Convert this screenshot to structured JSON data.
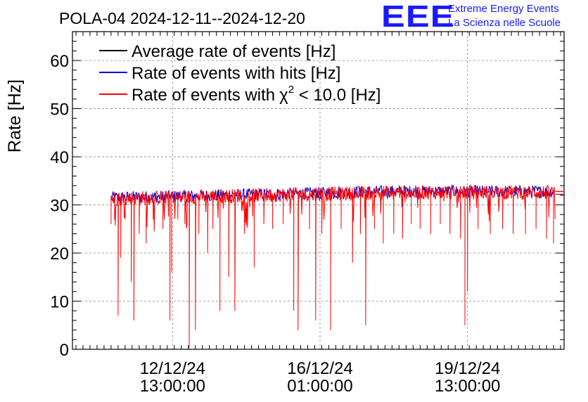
{
  "header": {
    "title": "POLA-04 2024-12-11--2024-12-20",
    "logo_text": "EEE",
    "logo_line1": "Extreme Energy Events",
    "logo_line2": "La Scienza nelle Scuole"
  },
  "colors": {
    "average": "#000000",
    "hits": "#0000cc",
    "chi2": "#ff0000",
    "logo": "#1a1aff",
    "grid": "#888888"
  },
  "chart_data": {
    "type": "line",
    "title": "POLA-04 2024-12-11--2024-12-20",
    "ylabel": "Rate [Hz]",
    "xlabel": "",
    "ylim": [
      0,
      66
    ],
    "y_ticks": [
      0,
      10,
      20,
      30,
      40,
      50,
      60
    ],
    "x_ticks": [
      {
        "date": "12/12/24",
        "time": "13:00:00",
        "hours_from_start": 37
      },
      {
        "date": "16/12/24",
        "time": "01:00:00",
        "hours_from_start": 121
      },
      {
        "date": "19/12/24",
        "time": "13:00:00",
        "hours_from_start": 205
      }
    ],
    "x_range_hours": [
      -20,
      260
    ],
    "data_x_range_hours": [
      2,
      255
    ],
    "legend_position": "top-left",
    "series": [
      {
        "name": "Average rate of events [Hz]",
        "key": "average",
        "value": 32.8
      },
      {
        "name": "Rate of events with hits [Hz]",
        "key": "hits",
        "baseline_start": 31.5,
        "baseline_end": 32.8
      },
      {
        "name": "Rate of events with",
        "key": "chi2",
        "chi_symbol": "χ",
        "chi_sup": "2",
        "chi_suffix": " < 10.0 [Hz]",
        "baseline_start": 31.3,
        "baseline_end": 32.6,
        "level_after_end": 32.2,
        "dips": [
          [
            2.0,
            26
          ],
          [
            4.0,
            27
          ],
          [
            6.0,
            7
          ],
          [
            7.5,
            19
          ],
          [
            10.0,
            27
          ],
          [
            13.5,
            14
          ],
          [
            15.0,
            6
          ],
          [
            18.0,
            24
          ],
          [
            22.0,
            22
          ],
          [
            26.0,
            27
          ],
          [
            31.5,
            25
          ],
          [
            35.5,
            6
          ],
          [
            36.5,
            16
          ],
          [
            40.0,
            27
          ],
          [
            44.0,
            26
          ],
          [
            46.5,
            0.2
          ],
          [
            50.0,
            4
          ],
          [
            52.0,
            24
          ],
          [
            57.0,
            20
          ],
          [
            60.0,
            25
          ],
          [
            64.0,
            8
          ],
          [
            69.0,
            15
          ],
          [
            72.5,
            8
          ],
          [
            78.0,
            24
          ],
          [
            83.5,
            17
          ],
          [
            89.0,
            26
          ],
          [
            94.0,
            25
          ],
          [
            100.0,
            26
          ],
          [
            106.0,
            8
          ],
          [
            108.5,
            4
          ],
          [
            115.0,
            25
          ],
          [
            118.5,
            6
          ],
          [
            122.0,
            24
          ],
          [
            127.0,
            4
          ],
          [
            133.0,
            25
          ],
          [
            139.5,
            18
          ],
          [
            144.0,
            24
          ],
          [
            147.0,
            5
          ],
          [
            152.0,
            25
          ],
          [
            157.0,
            22
          ],
          [
            163.0,
            24
          ],
          [
            168.0,
            23
          ],
          [
            173.0,
            26
          ],
          [
            178.0,
            25
          ],
          [
            184.0,
            24
          ],
          [
            189.5,
            26
          ],
          [
            195.0,
            24
          ],
          [
            201.0,
            23
          ],
          [
            203.5,
            5
          ],
          [
            205.0,
            12
          ],
          [
            211.0,
            25
          ],
          [
            218.0,
            24
          ],
          [
            225.0,
            25
          ],
          [
            231.0,
            24
          ],
          [
            238.0,
            24
          ],
          [
            244.0,
            25
          ],
          [
            250.0,
            23
          ],
          [
            254.0,
            22
          ]
        ]
      }
    ]
  }
}
